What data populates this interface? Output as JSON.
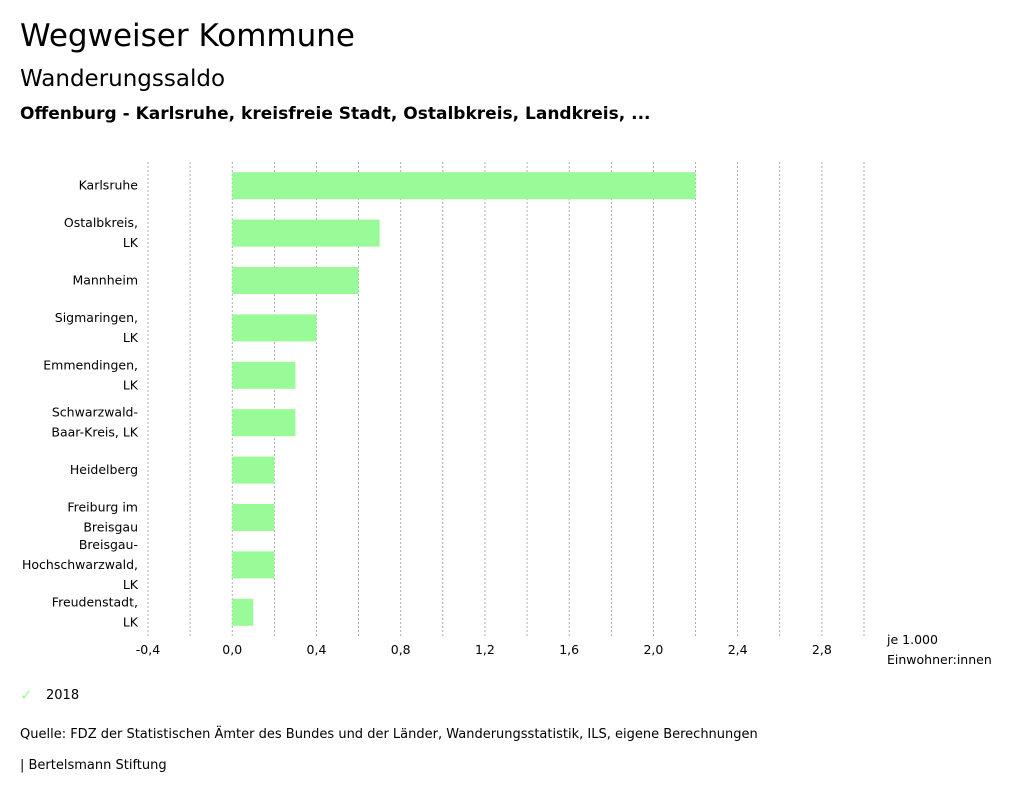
{
  "header": {
    "title": "Wegweiser Kommune",
    "subtitle": "Wanderungssaldo",
    "region": "Offenburg - Karlsruhe, kreisfreie Stadt, Ostalbkreis, Landkreis, ..."
  },
  "legend": {
    "label": "2018",
    "icon": "check-icon"
  },
  "footer": {
    "source": "Quelle: FDZ der Statistischen Ämter des Bundes und der Länder, Wanderungsstatistik, ILS, eigene Berechnungen",
    "brand": "| Bertelsmann Stiftung"
  },
  "unit": {
    "line1": "je 1.000",
    "line2": "Einwohner:innen"
  },
  "colors": {
    "bar": "#98FB98",
    "grid": "#999999"
  },
  "chart_data": {
    "type": "bar",
    "orientation": "horizontal",
    "categories": [
      "Karlsruhe",
      "Ostalbkreis, LK",
      "Mannheim",
      "Sigmaringen, LK",
      "Emmendingen, LK",
      "Schwarzwald-Baar-Kreis, LK",
      "Heidelberg",
      "Freiburg im Breisgau",
      "Breisgau-Hochschwarzwald, LK",
      "Freudenstadt, LK"
    ],
    "category_lines": [
      [
        "Karlsruhe"
      ],
      [
        "Ostalbkreis,",
        "LK"
      ],
      [
        "Mannheim"
      ],
      [
        "Sigmaringen,",
        "LK"
      ],
      [
        "Emmendingen,",
        "LK"
      ],
      [
        "Schwarzwald-",
        "Baar-Kreis, LK"
      ],
      [
        "Heidelberg"
      ],
      [
        "Freiburg im",
        "Breisgau"
      ],
      [
        "Breisgau-",
        "Hochschwarzwald,",
        "LK"
      ],
      [
        "Freudenstadt,",
        "LK"
      ]
    ],
    "series": [
      {
        "name": "2018",
        "values": [
          2.2,
          0.7,
          0.6,
          0.4,
          0.3,
          0.3,
          0.2,
          0.2,
          0.2,
          0.1
        ]
      }
    ],
    "xlim": [
      -0.4,
      3.0
    ],
    "xticks": [
      -0.4,
      0.0,
      0.4,
      0.8,
      1.2,
      1.6,
      2.0,
      2.4,
      2.8
    ],
    "xtick_labels": [
      "-0,4",
      "0,0",
      "0,4",
      "0,8",
      "1,2",
      "1,6",
      "2,0",
      "2,4",
      "2,8"
    ],
    "xlabel": "je 1.000 Einwohner:innen",
    "grid": true
  }
}
